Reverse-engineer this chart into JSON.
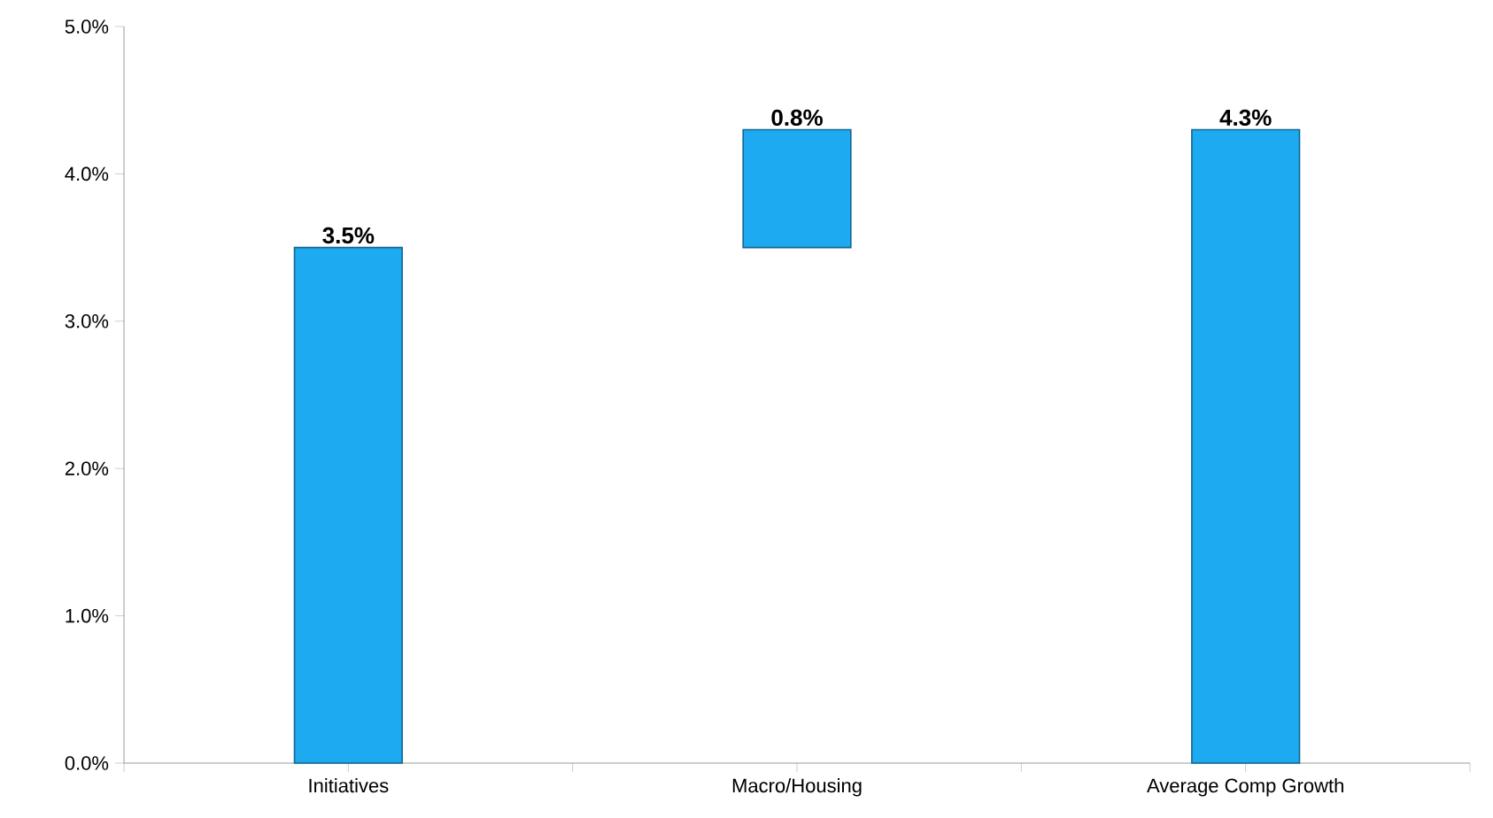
{
  "chart_data": {
    "type": "bar",
    "categories": [
      "Initiatives",
      "Macro/Housing",
      "Average Comp Growth"
    ],
    "values": [
      3.5,
      0.8,
      4.3
    ],
    "base": [
      0,
      3.5,
      0
    ],
    "color": "#1eaaf0",
    "value_labels": [
      "3.5%",
      "0.8%",
      "4.3%"
    ],
    "ylim": [
      0,
      5
    ],
    "yticks": [
      {
        "value": 0,
        "label": "0.0%"
      },
      {
        "value": 1,
        "label": "1.0%"
      },
      {
        "value": 2,
        "label": "2.0%"
      },
      {
        "value": 3,
        "label": "3.0%"
      },
      {
        "value": 4,
        "label": "4.0%"
      },
      {
        "value": 5,
        "label": "5.0%"
      }
    ]
  }
}
